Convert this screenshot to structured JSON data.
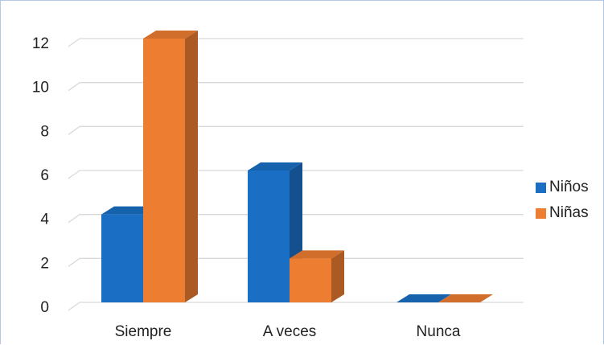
{
  "chart_data": {
    "type": "bar",
    "categories": [
      "Siempre",
      "A veces",
      "Nunca"
    ],
    "series": [
      {
        "name": "Niños",
        "values": [
          4,
          6,
          0
        ],
        "color": "#1a6fc4"
      },
      {
        "name": "Niñas",
        "values": [
          12,
          2,
          0
        ],
        "color": "#ed7d31"
      }
    ],
    "ylim": [
      0,
      12
    ],
    "yticks": [
      0,
      2,
      4,
      6,
      8,
      10,
      12
    ],
    "grid": true,
    "legend_position": "right",
    "style": "3d-clustered-column"
  }
}
